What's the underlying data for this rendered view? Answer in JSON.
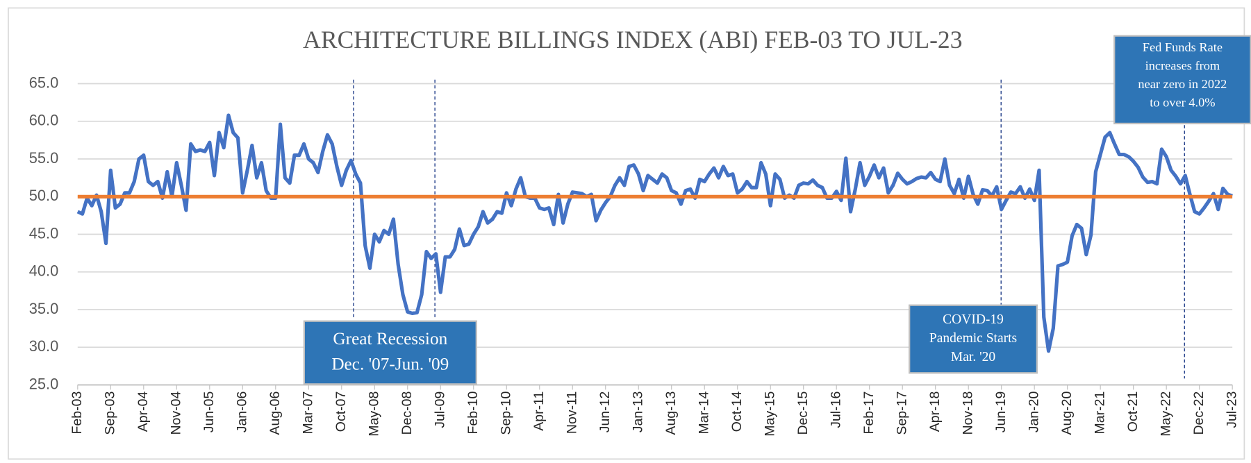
{
  "chart_data": {
    "type": "line",
    "title": "ARCHITECTURE BILLINGS INDEX (ABI) FEB-03 TO JUL-23",
    "categories": [
      "Feb-03",
      null,
      null,
      null,
      null,
      null,
      null,
      "Sep-03",
      null,
      null,
      null,
      null,
      null,
      null,
      "Apr-04",
      null,
      null,
      null,
      null,
      null,
      null,
      "Nov-04",
      null,
      null,
      null,
      null,
      null,
      null,
      "Jun-05",
      null,
      null,
      null,
      null,
      null,
      null,
      "Jan-06",
      null,
      null,
      null,
      null,
      null,
      null,
      "Aug-06",
      null,
      null,
      null,
      null,
      null,
      null,
      "Mar-07",
      null,
      null,
      null,
      null,
      null,
      null,
      "Oct-07",
      null,
      null,
      null,
      null,
      null,
      null,
      "May-08",
      null,
      null,
      null,
      null,
      null,
      null,
      "Dec-08",
      null,
      null,
      null,
      null,
      null,
      null,
      "Jul-09",
      null,
      null,
      null,
      null,
      null,
      null,
      "Feb-10",
      null,
      null,
      null,
      null,
      null,
      null,
      "Sep-10",
      null,
      null,
      null,
      null,
      null,
      null,
      "Apr-11",
      null,
      null,
      null,
      null,
      null,
      null,
      "Nov-11",
      null,
      null,
      null,
      null,
      null,
      null,
      "Jun-12",
      null,
      null,
      null,
      null,
      null,
      null,
      "Jan-13",
      null,
      null,
      null,
      null,
      null,
      null,
      "Aug-13",
      null,
      null,
      null,
      null,
      null,
      null,
      "Mar-14",
      null,
      null,
      null,
      null,
      null,
      null,
      "Oct-14",
      null,
      null,
      null,
      null,
      null,
      null,
      "May-15",
      null,
      null,
      null,
      null,
      null,
      null,
      "Dec-15",
      null,
      null,
      null,
      null,
      null,
      null,
      "Jul-16",
      null,
      null,
      null,
      null,
      null,
      null,
      "Feb-17",
      null,
      null,
      null,
      null,
      null,
      null,
      "Sep-17",
      null,
      null,
      null,
      null,
      null,
      null,
      "Apr-18",
      null,
      null,
      null,
      null,
      null,
      null,
      "Nov-18",
      null,
      null,
      null,
      null,
      null,
      null,
      "Jun-19",
      null,
      null,
      null,
      null,
      null,
      null,
      "Jan-20",
      null,
      null,
      null,
      null,
      null,
      null,
      "Aug-20",
      null,
      null,
      null,
      null,
      null,
      null,
      "Mar-21",
      null,
      null,
      null,
      null,
      null,
      null,
      "Oct-21",
      null,
      null,
      null,
      null,
      null,
      null,
      "May-22",
      null,
      null,
      null,
      null,
      null,
      null,
      "Dec-22",
      null,
      null,
      null,
      null,
      null,
      null,
      "Jul-23"
    ],
    "series": [
      {
        "color": "#4472c4",
        "values": [
          48,
          47.7,
          49.8,
          48.8,
          50.2,
          48,
          43.8,
          53.5,
          48.5,
          49,
          50.5,
          50.5,
          52,
          55,
          55.5,
          52,
          51.5,
          52,
          49.8,
          53.3,
          50,
          54.5,
          51.5,
          48.2,
          57,
          56,
          56.2,
          56,
          57.2,
          52.8,
          58.5,
          56.5,
          60.8,
          58.5,
          57.8,
          50.5,
          53.5,
          56.8,
          52.5,
          54.5,
          50.8,
          49.8,
          49.8,
          59.6,
          52.5,
          51.8,
          55.5,
          55.5,
          57,
          55,
          54.5,
          53.2,
          56,
          58.2,
          57,
          54,
          51.5,
          53.5,
          54.8,
          53,
          51.8,
          43.5,
          40.5,
          45,
          44,
          45.5,
          45,
          47,
          41,
          37,
          34.7,
          34.5,
          34.6,
          37,
          42.7,
          41.8,
          42.4,
          37.3,
          42,
          42,
          43,
          45.7,
          43.5,
          43.7,
          45,
          46,
          48,
          46.5,
          47,
          48,
          47.8,
          50.5,
          48.8,
          51,
          52.5,
          50,
          49.8,
          49.8,
          48.5,
          48.3,
          48.5,
          46.3,
          50.3,
          46.5,
          49,
          50.6,
          50.5,
          50.4,
          50,
          50.3,
          46.8,
          48.2,
          49.2,
          50,
          51.5,
          52.5,
          51.5,
          54,
          54.2,
          53,
          50.8,
          52.8,
          52.3,
          51.8,
          53,
          52.5,
          50.8,
          50.5,
          49,
          50.8,
          51,
          49.8,
          52.3,
          52,
          53,
          53.8,
          52.5,
          54,
          52.8,
          53,
          50.5,
          51,
          52,
          51.2,
          51.2,
          54.5,
          53,
          48.8,
          53,
          52.3,
          49.8,
          50.2,
          49.8,
          51.5,
          51.8,
          51.7,
          52.2,
          51.5,
          51.2,
          49.8,
          49.8,
          50.7,
          49.5,
          55.1,
          48,
          51,
          54.5,
          51.5,
          52.7,
          54.2,
          52.5,
          53.8,
          50.5,
          51.5,
          53.1,
          52.3,
          51.7,
          52,
          52.4,
          52.6,
          52.5,
          53.2,
          52.3,
          52,
          55,
          51.5,
          50.4,
          52.3,
          49.8,
          52.7,
          50.3,
          49,
          50.9,
          50.8,
          50.1,
          51.3,
          48.3,
          49.5,
          50.6,
          50.4,
          51.3,
          49.8,
          51,
          49.5,
          53.5,
          34,
          29.5,
          32.5,
          40.8,
          41,
          41.3,
          44.8,
          46.3,
          45.8,
          42.3,
          44.9,
          53.3,
          55.6,
          57.9,
          58.5,
          57,
          55.6,
          55.6,
          55.3,
          54.7,
          53.9,
          52.6,
          51.9,
          52,
          51.7,
          56.3,
          55.3,
          53.5,
          52.7,
          51.7,
          52.8,
          50.3,
          48,
          47.7,
          48.5,
          49.4,
          50.4,
          48.3,
          51.1,
          50.3,
          50.1
        ]
      }
    ],
    "reference_value": 50,
    "reference_color": "#ed7d31",
    "ylim": [
      25,
      65
    ],
    "yticks": [
      {
        "value": 25,
        "label": "25.0"
      },
      {
        "value": 30,
        "label": "30.0"
      },
      {
        "value": 35,
        "label": "35.0"
      },
      {
        "value": 40,
        "label": "40.0"
      },
      {
        "value": 45,
        "label": "45.0"
      },
      {
        "value": 50,
        "label": "50.0"
      },
      {
        "value": 55,
        "label": "55.0"
      },
      {
        "value": 60,
        "label": "60.0"
      },
      {
        "value": 65,
        "label": "65.0"
      }
    ],
    "grid": true,
    "annotations": [
      {
        "lines": [
          "Great Recession",
          "Dec. '07-Jun. '09"
        ]
      },
      {
        "lines": [
          "COVID-19",
          "Pandemic Starts",
          "Mar. '20"
        ]
      },
      {
        "lines": [
          "Fed Funds Rate",
          "increases from",
          "near zero in 2022",
          "to over 4.0%"
        ]
      }
    ]
  }
}
